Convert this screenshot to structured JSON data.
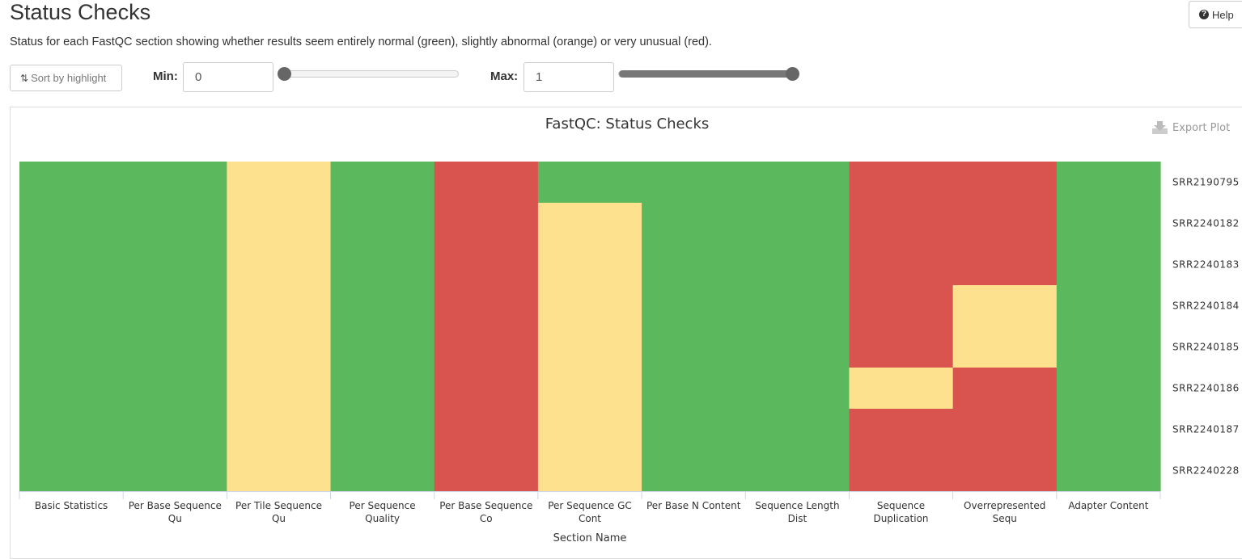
{
  "header": {
    "title": "Status Checks",
    "description": "Status for each FastQC section showing whether results seem entirely normal (green), slightly abnormal (orange) or very unusual (red).",
    "help_label": "Help",
    "help_icon": "question-circle-icon"
  },
  "controls": {
    "sort_label": "Sort by highlight",
    "sort_icon": "sort-arrows-icon",
    "min_label": "Min:",
    "min_value": "0",
    "min_slider_value": 0,
    "max_label": "Max:",
    "max_value": "1",
    "max_slider_value": 1
  },
  "toolbar": {
    "export_label": "Export Plot",
    "export_icon": "download-icon"
  },
  "colors": {
    "pass": "#5cb85c",
    "warn": "#fee18f",
    "fail": "#d9534f"
  },
  "chart_data": {
    "type": "heatmap",
    "title": "FastQC: Status Checks",
    "xlabel": "Section Name",
    "ylabel": "",
    "x_categories": [
      [
        "Basic Statistics"
      ],
      [
        "Per Base Sequence",
        "Qu"
      ],
      [
        "Per Tile Sequence",
        "Qu"
      ],
      [
        "Per Sequence",
        "Quality"
      ],
      [
        "Per Base Sequence",
        "Co"
      ],
      [
        "Per Sequence GC",
        "Cont"
      ],
      [
        "Per Base N Content"
      ],
      [
        "Sequence Length",
        "Dist"
      ],
      [
        "Sequence",
        "Duplication"
      ],
      [
        "Overrepresented",
        "Sequ"
      ],
      [
        "Adapter Content"
      ]
    ],
    "y_categories": [
      "SRR2190795",
      "SRR2240182",
      "SRR2240183",
      "SRR2240184",
      "SRR2240185",
      "SRR2240186",
      "SRR2240187",
      "SRR2240228"
    ],
    "value_range": [
      0,
      1
    ],
    "legend": "none",
    "grid": false,
    "status_matrix": [
      [
        "pass",
        "pass",
        "warn",
        "pass",
        "fail",
        "pass",
        "pass",
        "pass",
        "fail",
        "fail",
        "pass"
      ],
      [
        "pass",
        "pass",
        "warn",
        "pass",
        "fail",
        "warn",
        "pass",
        "pass",
        "fail",
        "fail",
        "pass"
      ],
      [
        "pass",
        "pass",
        "warn",
        "pass",
        "fail",
        "warn",
        "pass",
        "pass",
        "fail",
        "fail",
        "pass"
      ],
      [
        "pass",
        "pass",
        "warn",
        "pass",
        "fail",
        "warn",
        "pass",
        "pass",
        "fail",
        "warn",
        "pass"
      ],
      [
        "pass",
        "pass",
        "warn",
        "pass",
        "fail",
        "warn",
        "pass",
        "pass",
        "fail",
        "warn",
        "pass"
      ],
      [
        "pass",
        "pass",
        "warn",
        "pass",
        "fail",
        "warn",
        "pass",
        "pass",
        "warn",
        "fail",
        "pass"
      ],
      [
        "pass",
        "pass",
        "warn",
        "pass",
        "fail",
        "warn",
        "pass",
        "pass",
        "fail",
        "fail",
        "pass"
      ],
      [
        "pass",
        "pass",
        "warn",
        "pass",
        "fail",
        "warn",
        "pass",
        "pass",
        "fail",
        "fail",
        "pass"
      ]
    ]
  }
}
